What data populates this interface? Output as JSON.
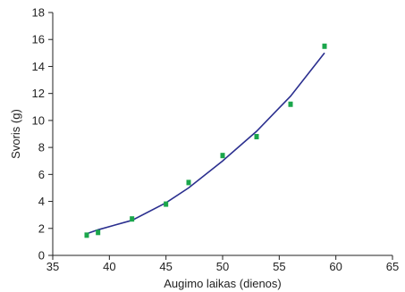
{
  "chart_data": {
    "type": "scatter",
    "title": "",
    "xlabel": "Augimo laikas (dienos)",
    "ylabel": "Svoris (g)",
    "xlim": [
      35,
      65
    ],
    "ylim": [
      0,
      18
    ],
    "xticks": [
      35,
      40,
      45,
      50,
      55,
      60,
      65
    ],
    "yticks": [
      0,
      2,
      4,
      6,
      8,
      10,
      12,
      14,
      16,
      18
    ],
    "grid": false,
    "legend": "none",
    "series": [
      {
        "kind": "scatter",
        "color": "#1aa64b",
        "x": [
          38,
          39,
          42,
          45,
          47,
          50,
          53,
          56,
          59
        ],
        "y": [
          1.5,
          1.7,
          2.7,
          3.8,
          5.4,
          7.4,
          8.8,
          11.2,
          15.5
        ]
      },
      {
        "kind": "line",
        "color": "#2b2f8f",
        "x": [
          38,
          39,
          42,
          45,
          47,
          50,
          53,
          56,
          59
        ],
        "y": [
          1.6,
          1.9,
          2.6,
          3.9,
          5.0,
          7.0,
          9.2,
          11.8,
          15.0
        ]
      }
    ]
  }
}
